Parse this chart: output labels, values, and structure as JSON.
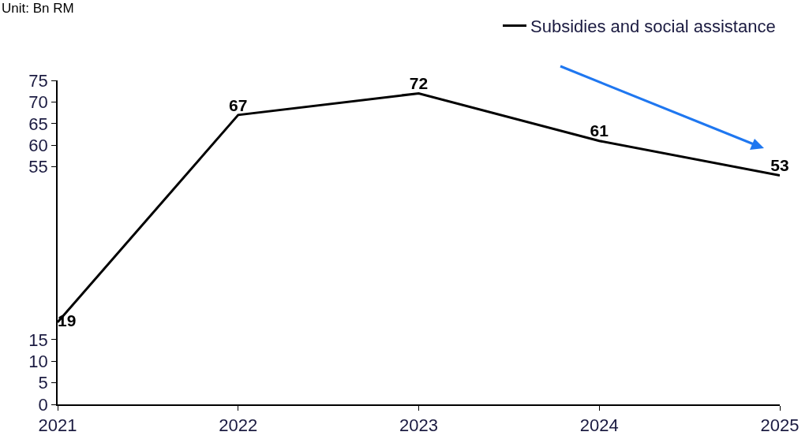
{
  "chart_data": {
    "type": "line",
    "annotations": [
      "Unit: Bn RM"
    ],
    "categories": [
      "2021",
      "2022",
      "2023",
      "2024",
      "2025"
    ],
    "series": [
      {
        "name": "Subsidies and social assistance",
        "color": "#000000",
        "values": [
          19,
          67,
          72,
          61,
          53
        ]
      }
    ],
    "ylim": [
      0,
      75
    ],
    "yticks": [
      0,
      5,
      10,
      15,
      55,
      60,
      65,
      70,
      75
    ],
    "data_labels": true,
    "legend": "top right",
    "marker": "none",
    "line_style": "solid",
    "grid": false
  }
}
